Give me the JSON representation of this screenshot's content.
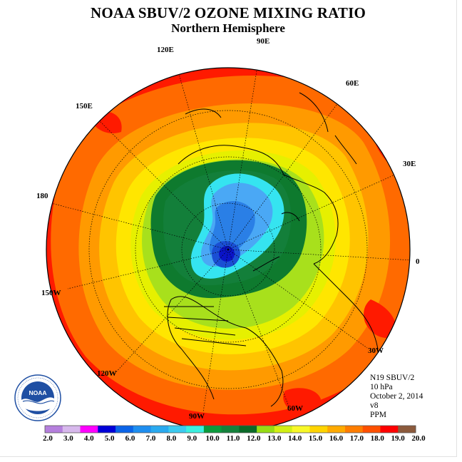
{
  "header": {
    "title": "NOAA SBUV/2 OZONE MIXING RATIO",
    "subtitle": "Northern Hemisphere"
  },
  "longitude_labels": [
    "90E",
    "60E",
    "30E",
    "0",
    "30W",
    "60W",
    "90W",
    "120W",
    "150W",
    "180",
    "150E",
    "120E"
  ],
  "info": {
    "lines": [
      "N19 SBUV/2",
      "10 hPa",
      "October 2, 2014",
      "v8",
      "PPM"
    ]
  },
  "colorbar": {
    "tick_labels": [
      "2.0",
      "3.0",
      "4.0",
      "5.0",
      "6.0",
      "7.0",
      "8.0",
      "9.0",
      "10.0",
      "11.0",
      "12.0",
      "13.0",
      "14.0",
      "15.0",
      "16.0",
      "17.0",
      "18.0",
      "19.0",
      "20.0"
    ],
    "colors": [
      "#b57fdd",
      "#d7b8ec",
      "#ff00ff",
      "#0000d8",
      "#0a64e8",
      "#1e8ef0",
      "#2aaaf0",
      "#3ccaf0",
      "#3cf0e0",
      "#0a9a3c",
      "#14823c",
      "#0a6a28",
      "#96dc14",
      "#d2f014",
      "#f8f828",
      "#ffd400",
      "#ffaa00",
      "#ff7d00",
      "#ff5000",
      "#ff0000",
      "#8c5a3c"
    ]
  },
  "map_field": {
    "contour_colors": [
      "#ff1a00",
      "#ff6a00",
      "#ff9a00",
      "#ffc400",
      "#ffe600",
      "#e6f000",
      "#a8e01c",
      "#0e7a2e",
      "#137f3a",
      "#39d6e8",
      "#35e4f0",
      "#4aa8f5",
      "#2a7fe6",
      "#1a4fd4",
      "#0a14c8"
    ]
  },
  "logo": {
    "text": "NOAA",
    "ring_text": "NATIONAL OCEANIC AND ATMOSPHERIC ADMINISTRATION · U.S. DEPARTMENT OF COMMERCE"
  }
}
